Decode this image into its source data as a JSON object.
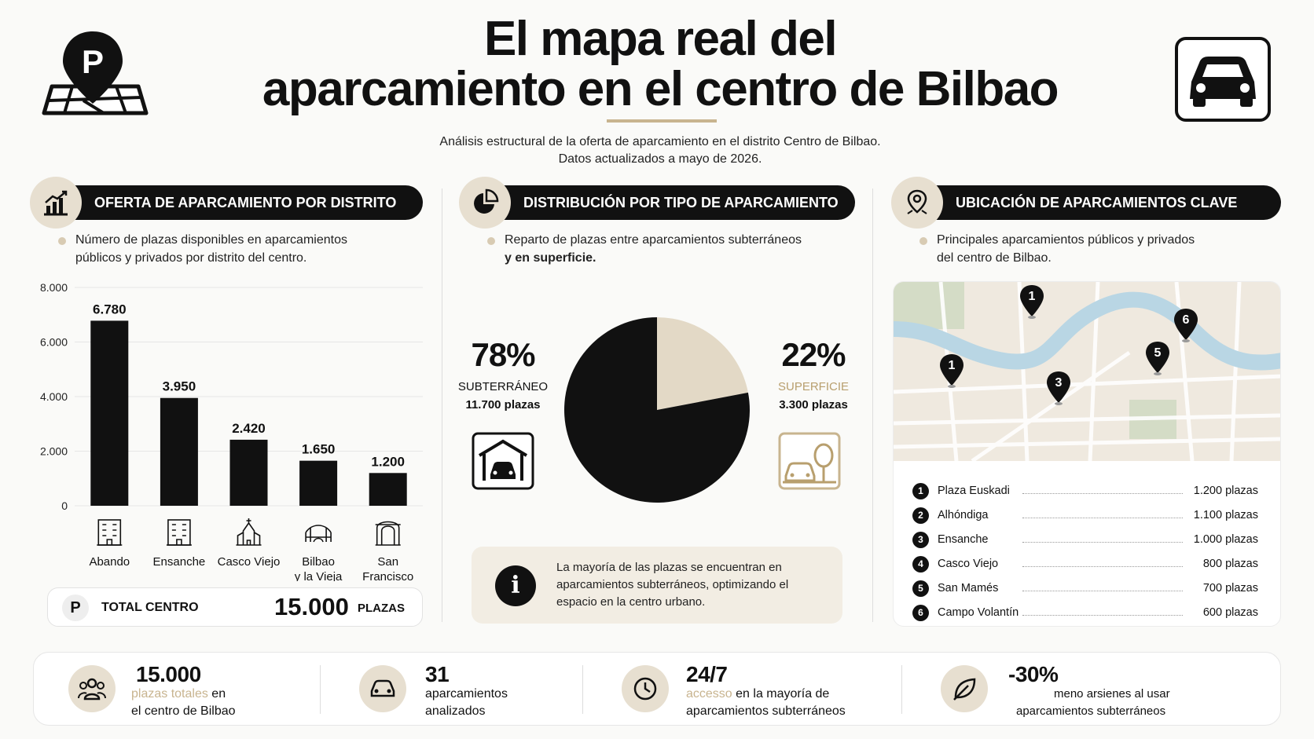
{
  "header": {
    "title_line1": "El mapa real del",
    "title_line2": "aparcamiento en el centro de Bilbao",
    "subtitle_line1": "Análisis estructural de la oferta de aparcamiento en el distrito Centro de Bilbao.",
    "subtitle_line2": "Datos actualizados a mayo de 2026."
  },
  "colors": {
    "accent": "#c8b48f",
    "dark": "#111111",
    "beige": "#e7dfd0",
    "map_river": "#b9d6e4",
    "map_park": "#cfd9c1"
  },
  "sections": {
    "district": {
      "title": "OFERTA DE APARCAMIENTO POR DISTRITO",
      "desc_line1": "Número de plazas disponibles en aparcamientos",
      "desc_line2": "públicos y privados por distrito del centro.",
      "icon": "bar-chart-icon"
    },
    "type": {
      "title": "DISTRIBUCIÓN POR TIPO DE APARCAMIENTO",
      "desc_line1": "Reparto de plazas entre aparcamientos subterráneos",
      "desc_line2": "y en superficie.",
      "icon": "pie-chart-icon"
    },
    "location": {
      "title": "UBICACIÓN DE APARCAMIENTOS CLAVE",
      "desc_line1": "Principales aparcamientos públicos y privados",
      "desc_line2": "del centro de Bilbao.",
      "icon": "location-pin-icon"
    }
  },
  "chart_data": [
    {
      "type": "bar",
      "categories": [
        "Abando",
        "Ensanche",
        "Casco Viejo",
        "Bilbao y la Vieja",
        "San Francisco"
      ],
      "category_lines": [
        [
          "Abando"
        ],
        [
          "Ensanche"
        ],
        [
          "Casco Viejo"
        ],
        [
          "Bilbao",
          "y la Vieja"
        ],
        [
          "San",
          "Francisco"
        ]
      ],
      "values": [
        6780,
        3950,
        2420,
        1650,
        1200
      ],
      "value_labels": [
        "6.780",
        "3.950",
        "2.420",
        "1.650",
        "1.200"
      ],
      "yticks": [
        0,
        2000,
        4000,
        6000,
        8000
      ],
      "ytick_labels": [
        "0",
        "2.000",
        "4.000",
        "6.000",
        "8.000"
      ],
      "ylim": [
        0,
        8000
      ],
      "grid": true
    },
    {
      "type": "pie",
      "slices": [
        {
          "label": "SUBTERRÁNEO",
          "value": 78,
          "percent_label": "78%",
          "count_label": "11.700 plazas",
          "color": "#111111"
        },
        {
          "label": "SUPERFICIE",
          "value": 22,
          "percent_label": "22%",
          "count_label": "3.300 plazas",
          "color": "#e3d9c6"
        }
      ]
    }
  ],
  "total": {
    "badge": "P",
    "label": "TOTAL CENTRO",
    "value": "15.000",
    "unit": "PLAZAS"
  },
  "info": {
    "icon": "info-icon",
    "line1": "La mayoría de las plazas se encuentran en",
    "line2": "aparcamientos subterráneos, optimizando el",
    "line3": "espacio en la centro urbano."
  },
  "map": {
    "markers": [
      "1",
      "6",
      "1",
      "5",
      "3"
    ],
    "parkings": [
      {
        "num": "1",
        "name": "Plaza Euskadi",
        "spaces": "1.200 plazas"
      },
      {
        "num": "2",
        "name": "Alhóndiga",
        "spaces": "1.100 plazas"
      },
      {
        "num": "3",
        "name": "Ensanche",
        "spaces": "1.000 plazas"
      },
      {
        "num": "4",
        "name": "Casco Viejo",
        "spaces": "800 plazas"
      },
      {
        "num": "5",
        "name": "San Mamés",
        "spaces": "700 plazas"
      },
      {
        "num": "6",
        "name": "Campo Volantín",
        "spaces": "600 plazas"
      }
    ]
  },
  "kpis": [
    {
      "icon": "people-icon",
      "value": "15.000",
      "text_gold": "plazas totales",
      "text_a": " en",
      "text_b": "el centro de Bilbao"
    },
    {
      "icon": "car-icon",
      "value": "31",
      "text_gold": "",
      "text_a": "aparcamientos",
      "text_b": "analizados"
    },
    {
      "icon": "clock-icon",
      "value": "24/7",
      "text_gold": "accesso",
      "text_a": " en la mayoría de",
      "text_b": "aparcamientos subterráneos"
    },
    {
      "icon": "leaf-icon",
      "value": "-30%",
      "text_gold": "",
      "text_a": "meno arsienes al usar",
      "text_b": "aparcamientos subterráneos"
    }
  ]
}
